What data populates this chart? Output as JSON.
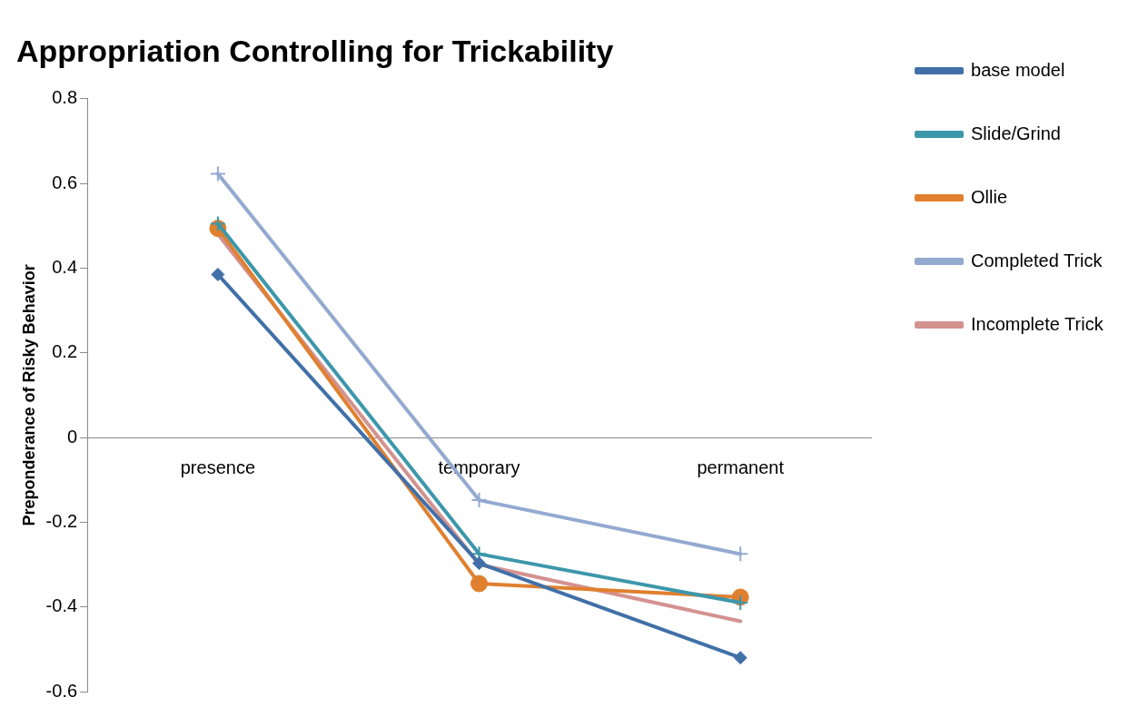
{
  "chart_data": {
    "type": "line",
    "title": "Appropriation Controlling for Trickability",
    "ylabel": "Preponderance of Risky Behavior",
    "categories": [
      "presence",
      "temporary",
      "permanent"
    ],
    "ylim": [
      -0.6,
      0.8
    ],
    "yticks": [
      -0.6,
      -0.4,
      -0.2,
      0,
      0.2,
      0.4,
      0.6,
      0.8
    ],
    "grid": false,
    "legend": "right",
    "series": [
      {
        "name": "base model",
        "color": "#4170a8",
        "marker": "diamond",
        "values": [
          0.385,
          -0.297,
          -0.52
        ]
      },
      {
        "name": "Slide/Grind",
        "color": "#3d97ab",
        "marker": "cross",
        "values": [
          0.505,
          -0.275,
          -0.39
        ]
      },
      {
        "name": "Ollie",
        "color": "#e0802f",
        "marker": "circle",
        "values": [
          0.494,
          -0.345,
          -0.377
        ]
      },
      {
        "name": "Completed Trick",
        "color": "#93a9d0",
        "marker": "cross",
        "values": [
          0.623,
          -0.148,
          -0.275
        ]
      },
      {
        "name": "Incomplete Trick",
        "color": "#d39290",
        "marker": "none",
        "values": [
          0.48,
          -0.3,
          -0.434
        ]
      }
    ]
  }
}
